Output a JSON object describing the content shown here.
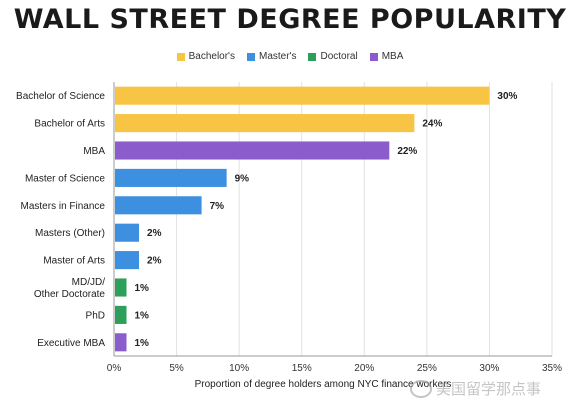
{
  "chart_data": {
    "type": "bar",
    "orientation": "horizontal",
    "title": "WALL STREET DEGREE POPULARITY",
    "xlabel": "Proportion of degree holders among NYC finance workers",
    "ylabel": "",
    "xlim": [
      0,
      35
    ],
    "xticks": [
      "0%",
      "5%",
      "10%",
      "15%",
      "20%",
      "25%",
      "30%",
      "35%"
    ],
    "grid": true,
    "legend_position": "top",
    "legend": [
      {
        "name": "Bachelor's",
        "color": "#F8C444"
      },
      {
        "name": "Master's",
        "color": "#3D8FE0"
      },
      {
        "name": "Doctoral",
        "color": "#2E9E5B"
      },
      {
        "name": "MBA",
        "color": "#8B5CCB"
      }
    ],
    "categories": [
      "Bachelor of Science",
      "Bachelor of Arts",
      "MBA",
      "Master of Science",
      "Masters in Finance",
      "Masters (Other)",
      "Master of Arts",
      "MD/JD/\nOther Doctorate",
      "PhD",
      "Executive MBA"
    ],
    "values": [
      30,
      24,
      22,
      9,
      7,
      2,
      2,
      1,
      1,
      1
    ],
    "value_labels": [
      "30%",
      "24%",
      "22%",
      "9%",
      "7%",
      "2%",
      "2%",
      "1%",
      "1%",
      "1%"
    ],
    "groups": [
      "Bachelor's",
      "Bachelor's",
      "MBA",
      "Master's",
      "Master's",
      "Master's",
      "Master's",
      "Doctoral",
      "Doctoral",
      "MBA"
    ]
  },
  "watermark": {
    "text": "美国留学那点事",
    "icon": "wechat-icon"
  }
}
